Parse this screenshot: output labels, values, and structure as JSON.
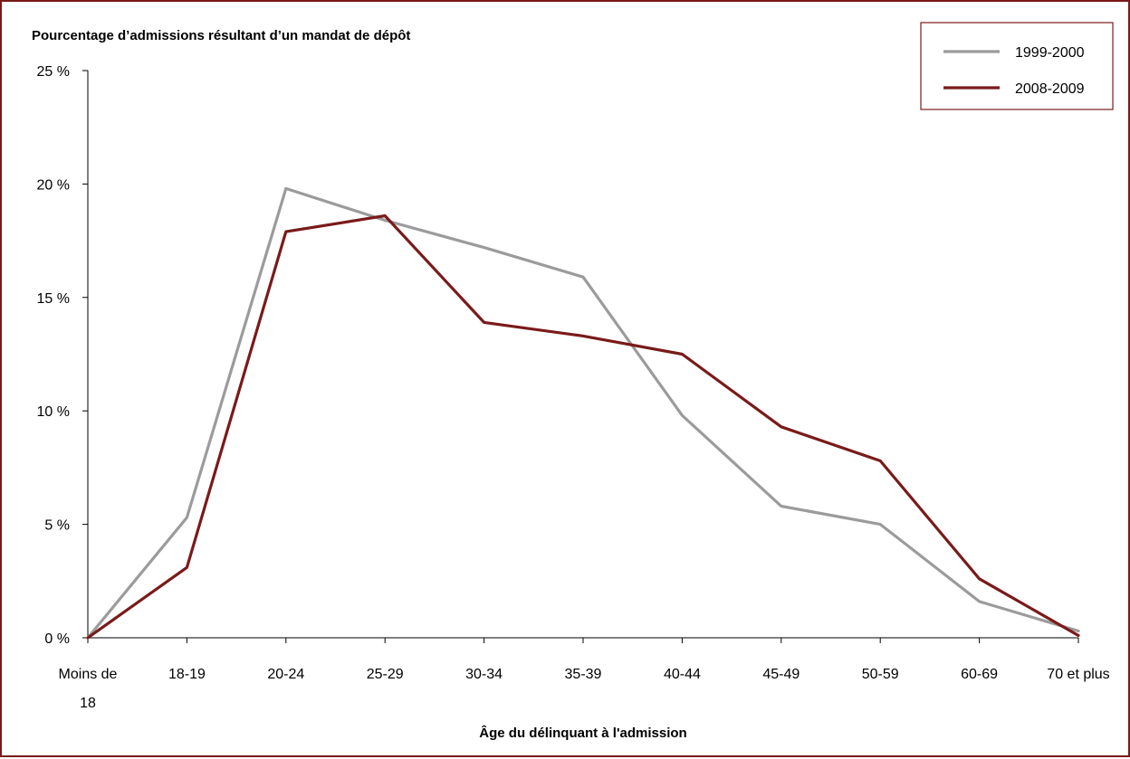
{
  "chart_data": {
    "type": "line",
    "title": "",
    "ylabel": "Pourcentage d’admissions résultant d’un mandat de dépôt",
    "xlabel": "Âge du délinquant à l'admission",
    "categories": [
      [
        "Moins de",
        "18"
      ],
      [
        "18-19"
      ],
      [
        "20-24"
      ],
      [
        "25-29"
      ],
      [
        "30-34"
      ],
      [
        "35-39"
      ],
      [
        "40-44"
      ],
      [
        "45-49"
      ],
      [
        "50-59"
      ],
      [
        "60-69"
      ],
      [
        "70 et plus"
      ]
    ],
    "ylim": [
      0,
      25
    ],
    "yticks": [
      0,
      5,
      10,
      15,
      20,
      25
    ],
    "ytick_labels": [
      "0 %",
      "5 %",
      "10 %",
      "15 %",
      "20 %",
      "25 %"
    ],
    "grid": false,
    "legend_position": "top-right",
    "series": [
      {
        "name": "1999-2000",
        "color": "#9b9b9b",
        "values": [
          0,
          5.3,
          19.8,
          18.4,
          17.2,
          15.9,
          9.8,
          5.8,
          5.0,
          1.6,
          0.3
        ]
      },
      {
        "name": "2008-2009",
        "color": "#7a1a1a",
        "values": [
          0,
          3.1,
          17.9,
          18.6,
          13.9,
          13.3,
          12.5,
          9.3,
          7.8,
          2.6,
          0.1
        ]
      }
    ]
  }
}
